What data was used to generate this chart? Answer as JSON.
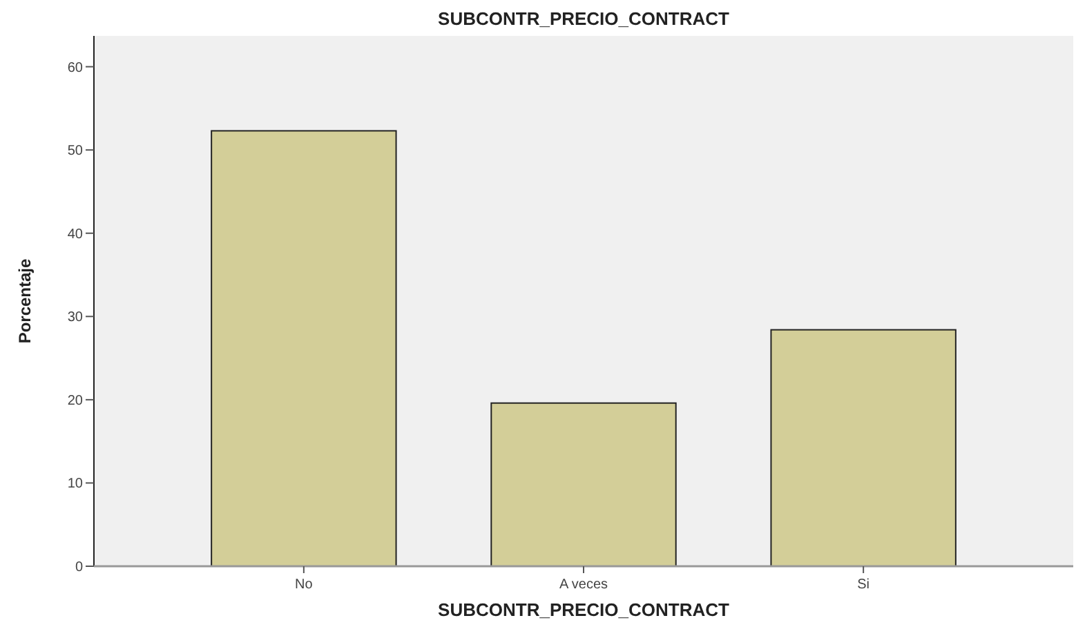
{
  "chart_data": {
    "type": "bar",
    "title": "SUBCONTR_PRECIO_CONTRACT",
    "xlabel": "SUBCONTR_PRECIO_CONTRACT",
    "ylabel": "Porcentaje",
    "categories": [
      "No",
      "A veces",
      "Si"
    ],
    "values": [
      52.3,
      19.6,
      28.4
    ],
    "color": "#d3ce98",
    "ylim": [
      0,
      63.7
    ],
    "yticks": [
      0,
      10,
      20,
      30,
      40,
      50,
      60
    ],
    "grid": false
  }
}
